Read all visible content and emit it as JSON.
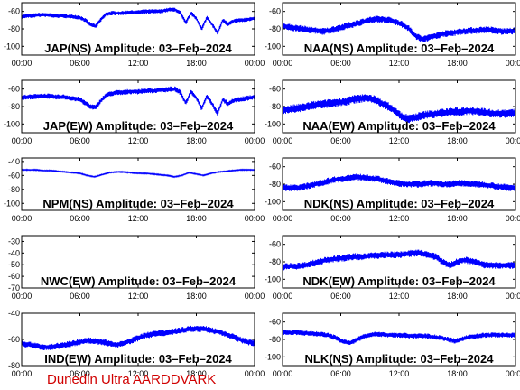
{
  "credit": "Dunedin Ultra AARDDVARK",
  "trace_color": "#0000ff",
  "credit_color": "#d00000",
  "chart_data": [
    {
      "type": "line",
      "title": "JAP(NS) Amplitude: 03–Feb–2024",
      "x_ticks": [
        "00:00",
        "06:00",
        "12:00",
        "18:00",
        "00:00"
      ],
      "y_ticks": [
        "-60",
        "-80",
        "-100"
      ],
      "ylim": [
        -110,
        -50
      ],
      "series": [
        {
          "name": "",
          "values": [
            -66,
            -65,
            -65,
            -64,
            -64,
            -64,
            -65,
            -65,
            -65,
            -66,
            -66,
            -67,
            -70,
            -75,
            -77,
            -69,
            -63,
            -62,
            -62,
            -62,
            -61,
            -61,
            -61,
            -60,
            -60,
            -60,
            -60,
            -59,
            -58,
            -58,
            -62,
            -73,
            -62,
            -68,
            -80,
            -67,
            -75,
            -85,
            -70,
            -75,
            -71,
            -70,
            -70,
            -69,
            -68
          ]
        }
      ],
      "band": 2.5
    },
    {
      "type": "line",
      "title": "NAA(NS) Amplitude: 03–Feb–2024",
      "x_ticks": [
        "00:00",
        "06:00",
        "12:00",
        "18:00",
        "00:00"
      ],
      "y_ticks": [
        "-60",
        "-80",
        "-100"
      ],
      "ylim": [
        -110,
        -50
      ],
      "series": [
        {
          "name": "",
          "values": [
            -77,
            -78,
            -79,
            -80,
            -81,
            -82,
            -83,
            -82,
            -80,
            -78,
            -76,
            -74,
            -72,
            -70,
            -69,
            -69,
            -70,
            -72,
            -75,
            -80,
            -88,
            -92,
            -90,
            -88,
            -86,
            -85,
            -84,
            -83,
            -82,
            -82,
            -81,
            -81,
            -82,
            -83,
            -83,
            -82
          ]
        }
      ],
      "band": 4
    },
    {
      "type": "line",
      "title": "JAP(EW) Amplitude: 03–Feb–2024",
      "x_ticks": [
        "00:00",
        "06:00",
        "12:00",
        "18:00",
        "00:00"
      ],
      "y_ticks": [
        "-60",
        "-80",
        "-100"
      ],
      "ylim": [
        -110,
        -50
      ],
      "series": [
        {
          "name": "",
          "values": [
            -70,
            -69,
            -69,
            -68,
            -68,
            -68,
            -69,
            -69,
            -69,
            -70,
            -71,
            -72,
            -76,
            -80,
            -81,
            -73,
            -67,
            -65,
            -64,
            -64,
            -63,
            -63,
            -63,
            -62,
            -62,
            -62,
            -61,
            -61,
            -60,
            -60,
            -64,
            -76,
            -63,
            -70,
            -82,
            -68,
            -77,
            -88,
            -72,
            -77,
            -73,
            -72,
            -71,
            -70,
            -69
          ]
        }
      ],
      "band": 3
    },
    {
      "type": "line",
      "title": "NAA(EW) Amplitude: 03–Feb–2024",
      "x_ticks": [
        "00:00",
        "06:00",
        "12:00",
        "18:00",
        "00:00"
      ],
      "y_ticks": [
        "-60",
        "-80",
        "-100"
      ],
      "ylim": [
        -110,
        -50
      ],
      "series": [
        {
          "name": "",
          "values": [
            -84,
            -83,
            -82,
            -81,
            -79,
            -78,
            -77,
            -76,
            -75,
            -74,
            -72,
            -71,
            -70,
            -72,
            -76,
            -80,
            -86,
            -92,
            -94,
            -92,
            -90,
            -89,
            -88,
            -87,
            -86,
            -86,
            -85,
            -85,
            -86,
            -87,
            -88,
            -88,
            -88,
            -87
          ]
        }
      ],
      "band": 5
    },
    {
      "type": "line",
      "title": "NPM(NS) Amplitude: 03–Feb–2024",
      "x_ticks": [
        "00:00",
        "06:00",
        "12:00",
        "18:00",
        "00:00"
      ],
      "y_ticks": [
        "-40",
        "-60",
        "-80",
        "-100"
      ],
      "ylim": [
        -110,
        -35
      ],
      "series": [
        {
          "name": "",
          "values": [
            -52,
            -52,
            -52,
            -53,
            -53,
            -54,
            -55,
            -56,
            -57,
            -60,
            -62,
            -59,
            -56,
            -55,
            -55,
            -56,
            -57,
            -57,
            -58,
            -59,
            -60,
            -62,
            -60,
            -56,
            -58,
            -60,
            -57,
            -55,
            -54,
            -53,
            -52,
            -52,
            -52
          ]
        }
      ],
      "band": 0.8
    },
    {
      "type": "line",
      "title": "NDK(NS) Amplitude: 03–Feb–2024",
      "x_ticks": [
        "00:00",
        "06:00",
        "12:00",
        "18:00",
        "00:00"
      ],
      "y_ticks": [
        "-60",
        "-80",
        "-100"
      ],
      "ylim": [
        -110,
        -50
      ],
      "series": [
        {
          "name": "",
          "values": [
            -84,
            -84,
            -84,
            -83,
            -81,
            -79,
            -77,
            -75,
            -74,
            -73,
            -72,
            -72,
            -73,
            -74,
            -76,
            -78,
            -79,
            -80,
            -80,
            -80,
            -79,
            -79,
            -80,
            -80,
            -79,
            -79,
            -80,
            -80,
            -81,
            -82,
            -83,
            -84,
            -84
          ]
        }
      ],
      "band": 4
    },
    {
      "type": "line",
      "title": "NWC(EW) Amplitude: 03–Feb–2024",
      "x_ticks": [
        "00:00",
        "06:00",
        "12:00",
        "18:00",
        "00:00"
      ],
      "y_ticks": [
        "-30",
        "-40",
        "-50",
        "-60",
        "-70"
      ],
      "ylim": [
        -70,
        -25
      ],
      "series": []
    },
    {
      "type": "line",
      "title": "NDK(EW) Amplitude: 03–Feb–2024",
      "x_ticks": [
        "00:00",
        "06:00",
        "12:00",
        "18:00",
        "00:00"
      ],
      "y_ticks": [
        "-60",
        "-80",
        "-100"
      ],
      "ylim": [
        -110,
        -50
      ],
      "series": [
        {
          "name": "",
          "values": [
            -86,
            -85,
            -85,
            -84,
            -82,
            -80,
            -78,
            -77,
            -76,
            -75,
            -74,
            -74,
            -73,
            -73,
            -72,
            -72,
            -72,
            -71,
            -70,
            -70,
            -72,
            -74,
            -80,
            -84,
            -80,
            -78,
            -79,
            -82,
            -84,
            -84,
            -84,
            -84,
            -84
          ]
        }
      ],
      "band": 4
    },
    {
      "type": "line",
      "title": "IND(EW) Amplitude: 03–Feb–2024",
      "x_ticks": [
        "00:00",
        "06:00",
        "12:00",
        "18:00",
        "00:00"
      ],
      "y_ticks": [
        "-40",
        "-60",
        "-80"
      ],
      "ylim": [
        -80,
        -40
      ],
      "series": [
        {
          "name": "",
          "values": [
            -63,
            -64,
            -65,
            -66,
            -66,
            -65,
            -64,
            -63,
            -62,
            -61,
            -61,
            -62,
            -63,
            -64,
            -63,
            -61,
            -59,
            -57,
            -56,
            -55,
            -55,
            -54,
            -53,
            -52,
            -52,
            -52,
            -53,
            -54,
            -56,
            -58,
            -60,
            -62,
            -63
          ]
        }
      ],
      "band": 2.5
    },
    {
      "type": "line",
      "title": "NLK(NS) Amplitude: 03–Feb–2024",
      "x_ticks": [
        "00:00",
        "06:00",
        "12:00",
        "18:00",
        "00:00"
      ],
      "y_ticks": [
        "-60",
        "-80",
        "-100"
      ],
      "ylim": [
        -110,
        -50
      ],
      "series": [
        {
          "name": "",
          "values": [
            -72,
            -72,
            -72,
            -73,
            -73,
            -74,
            -75,
            -78,
            -82,
            -84,
            -80,
            -76,
            -74,
            -74,
            -75,
            -75,
            -75,
            -76,
            -76,
            -76,
            -77,
            -78,
            -80,
            -82,
            -79,
            -77,
            -76,
            -75,
            -75,
            -75,
            -75,
            -75
          ]
        }
      ],
      "band": 3
    }
  ]
}
